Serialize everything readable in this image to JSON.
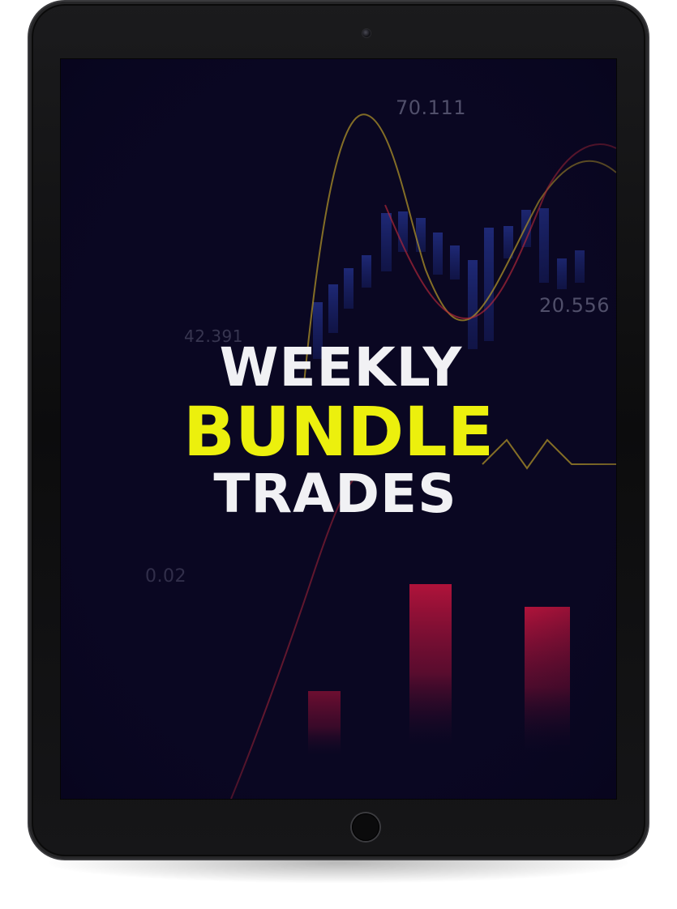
{
  "cover": {
    "title_line1": "WEEKLY",
    "title_line2": "BUNDLE",
    "title_line3": "TRADES"
  },
  "background_chart": {
    "numbers": [
      "70.111",
      "20.556",
      "42.391",
      "0.02"
    ]
  },
  "colors": {
    "screen_background": "#0a0722",
    "title_white": "#f1f1f4",
    "title_yellow": "#ecf00d",
    "candle_blue": "#2a3fa8",
    "bar_red": "#b2133a",
    "curve_yellow": "#b89a28",
    "curve_red": "#b8283a"
  },
  "device": {
    "type": "tablet",
    "camera": "camera-icon",
    "home_button": "home-button-icon"
  }
}
